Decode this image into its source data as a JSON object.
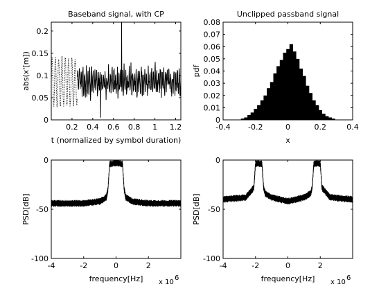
{
  "chart_data": [
    {
      "type": "line",
      "title": "Baseband signal, with CP",
      "xlabel": "t (normalized by symbol duration)",
      "ylabel": "abs(x'[m])",
      "xlim": [
        0,
        1.25
      ],
      "ylim": [
        0,
        0.22
      ],
      "xticks": [
        "0.2",
        "0.4",
        "0.6",
        "0.8",
        "1",
        "1.2"
      ],
      "yticks": [
        "0",
        "0.05",
        "0.1",
        "0.15",
        "0.2"
      ],
      "grid": false,
      "series": [
        {
          "style": "dotted",
          "x_range": [
            0,
            0.25
          ]
        },
        {
          "style": "solid",
          "x_range": [
            0.25,
            1.25
          ]
        }
      ]
    },
    {
      "type": "bar",
      "title": "Unclipped passband signal",
      "xlabel": "x",
      "ylabel": "pdf",
      "xlim": [
        -0.4,
        0.4
      ],
      "ylim": [
        0,
        0.08
      ],
      "xticks": [
        "-0.4",
        "-0.2",
        "0",
        "0.2",
        "0.4"
      ],
      "yticks": [
        "0",
        "0.01",
        "0.02",
        "0.03",
        "0.04",
        "0.05",
        "0.06",
        "0.07",
        "0.08"
      ],
      "grid": false,
      "x": [
        -0.28,
        -0.26,
        -0.24,
        -0.22,
        -0.2,
        -0.18,
        -0.16,
        -0.14,
        -0.12,
        -0.1,
        -0.08,
        -0.06,
        -0.04,
        -0.02,
        0.0,
        0.02,
        0.04,
        0.06,
        0.08,
        0.1,
        0.12,
        0.14,
        0.16,
        0.18,
        0.2,
        0.22,
        0.24,
        0.26,
        0.28
      ],
      "values": [
        0.001,
        0.002,
        0.004,
        0.006,
        0.009,
        0.012,
        0.016,
        0.02,
        0.026,
        0.031,
        0.038,
        0.044,
        0.049,
        0.055,
        0.058,
        0.062,
        0.056,
        0.05,
        0.042,
        0.036,
        0.028,
        0.022,
        0.016,
        0.012,
        0.008,
        0.005,
        0.003,
        0.002,
        0.001
      ]
    },
    {
      "type": "line",
      "title": "",
      "xlabel": "frequency[Hz]",
      "ylabel": "PSD[dB]",
      "x_multiplier": "x 10",
      "x_multiplier_exp": "6",
      "xlim": [
        -4,
        4
      ],
      "ylim": [
        -100,
        0
      ],
      "xticks": [
        "-4",
        "-2",
        "0",
        "2"
      ],
      "yticks": [
        "0",
        "-50",
        "-100"
      ],
      "grid": false,
      "series": [
        {
          "x": [
            -4,
            -3,
            -2,
            -1,
            -0.6,
            -0.5,
            -0.4,
            0,
            0.4,
            0.5,
            0.6,
            1,
            2,
            3,
            4
          ],
          "values": [
            -44,
            -44,
            -44,
            -42,
            -38,
            -30,
            -4,
            -3,
            -4,
            -30,
            -38,
            -42,
            -44,
            -44,
            -44
          ]
        }
      ]
    },
    {
      "type": "line",
      "title": "",
      "xlabel": "frequency[Hz]",
      "ylabel": "PSD[dB]",
      "x_multiplier": "x 10",
      "x_multiplier_exp": "6",
      "xlim": [
        -4,
        4
      ],
      "ylim": [
        -100,
        0
      ],
      "xticks": [
        "-4",
        "-2",
        "0",
        "2"
      ],
      "yticks": [
        "0",
        "-50",
        "-100"
      ],
      "grid": false,
      "series": [
        {
          "x": [
            -4,
            -2.6,
            -2.1,
            -2.0,
            -1.9,
            -1.6,
            -1.5,
            -1.4,
            -1,
            0,
            1,
            1.4,
            1.5,
            1.6,
            1.9,
            2.0,
            2.1,
            2.6,
            4
          ],
          "values": [
            -40,
            -38,
            -28,
            -4,
            -3,
            -4,
            -28,
            -34,
            -38,
            -42,
            -38,
            -34,
            -28,
            -4,
            -3,
            -4,
            -28,
            -38,
            -40
          ]
        }
      ]
    }
  ]
}
